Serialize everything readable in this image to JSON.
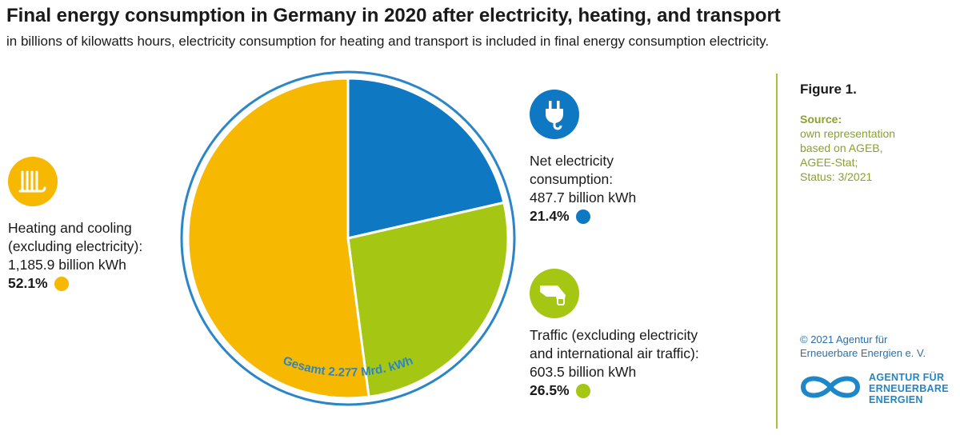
{
  "header": {
    "title": "Final energy consumption in Germany in 2020 after electricity, heating, and transport",
    "subtitle": "in billions of kilowatts hours, electricity consumption for heating and transport is included in final energy consumption electricity."
  },
  "chart_data": {
    "type": "pie",
    "title": "Final energy consumption in Germany in 2020 after electricity, heating, and transport",
    "total_label": "Gesamt 2.277 Mrd. kWh",
    "slices": [
      {
        "key": "electricity",
        "label_lines": [
          "Net electricity",
          "consumption:"
        ],
        "value": 487.7,
        "value_label": "487.7 billion kWh",
        "percent": 21.4,
        "percent_label": "21.4%",
        "color": "#0f78c3",
        "icon": "plug-icon"
      },
      {
        "key": "traffic",
        "label_lines": [
          "Traffic (excluding electricity",
          "and international air traffic):"
        ],
        "value": 603.5,
        "value_label": "603.5 billion kWh",
        "percent": 26.5,
        "percent_label": "26.5%",
        "color": "#a5c612",
        "icon": "fuel-nozzle-icon"
      },
      {
        "key": "heating",
        "label_lines": [
          "Heating and cooling",
          "(excluding electricity):"
        ],
        "value": 1185.9,
        "value_label": "1,185.9 billion kWh",
        "percent": 52.1,
        "percent_label": "52.1%",
        "color": "#f6b800",
        "icon": "radiator-icon"
      }
    ],
    "ring_color": "#2a86c8"
  },
  "side_panel": {
    "figure_label": "Figure 1.",
    "source_heading": "Source:",
    "source_lines": [
      "own representation",
      "based on AGEB,",
      "AGEE-Stat;",
      "Status: 3/2021"
    ],
    "copyright_lines": [
      "© 2021 Agentur für",
      "Erneuerbare Energien e. V."
    ],
    "logo_lines": [
      "AGENTUR FÜR",
      "ERNEUERBARE",
      "ENERGIEN"
    ],
    "logo_icon": "infinity-logo-icon"
  }
}
